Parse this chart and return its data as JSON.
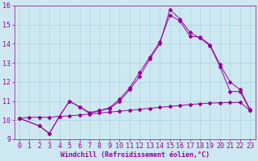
{
  "xlabel": "Windchill (Refroidissement éolien,°C)",
  "background_color": "#cde8f0",
  "line_color": "#990099",
  "xlim": [
    -0.5,
    23.5
  ],
  "ylim": [
    9,
    16
  ],
  "xticks": [
    0,
    1,
    2,
    3,
    4,
    5,
    6,
    7,
    8,
    9,
    10,
    11,
    12,
    13,
    14,
    15,
    16,
    17,
    18,
    19,
    20,
    21,
    22,
    23
  ],
  "yticks": [
    9,
    10,
    11,
    12,
    13,
    14,
    15,
    16
  ],
  "line1_x": [
    0,
    1,
    2,
    3,
    4,
    5,
    6,
    7,
    8,
    9,
    10,
    11,
    12,
    13,
    14,
    15,
    16,
    17,
    18,
    19,
    20,
    21,
    22,
    23
  ],
  "line1_y": [
    10.1,
    10.15,
    10.15,
    10.15,
    10.2,
    10.22,
    10.27,
    10.32,
    10.37,
    10.42,
    10.47,
    10.52,
    10.57,
    10.62,
    10.67,
    10.72,
    10.77,
    10.82,
    10.86,
    10.89,
    10.91,
    10.92,
    10.93,
    10.5
  ],
  "line2_x": [
    0,
    2,
    3,
    4,
    5,
    6,
    7,
    8,
    9,
    10,
    11,
    12,
    13,
    14,
    15,
    16,
    17,
    18,
    19,
    20,
    21,
    22,
    23
  ],
  "line2_y": [
    10.1,
    9.7,
    9.3,
    10.2,
    11.0,
    10.7,
    10.35,
    10.5,
    10.6,
    11.0,
    11.6,
    12.3,
    13.2,
    14.0,
    15.8,
    15.3,
    14.6,
    14.3,
    13.9,
    12.8,
    11.5,
    11.5,
    10.5
  ],
  "line3_x": [
    0,
    2,
    3,
    4,
    5,
    6,
    7,
    8,
    9,
    10,
    11,
    12,
    13,
    14,
    15,
    16,
    17,
    18,
    19,
    20,
    21,
    22,
    23
  ],
  "line3_y": [
    10.1,
    9.7,
    9.3,
    10.2,
    11.0,
    10.7,
    10.4,
    10.5,
    10.65,
    11.1,
    11.7,
    12.5,
    13.3,
    14.1,
    15.5,
    15.2,
    14.4,
    14.35,
    13.95,
    12.9,
    12.0,
    11.6,
    10.55
  ],
  "font_size": 6,
  "marker": "D",
  "marker_size": 2,
  "linewidth": 0.7
}
